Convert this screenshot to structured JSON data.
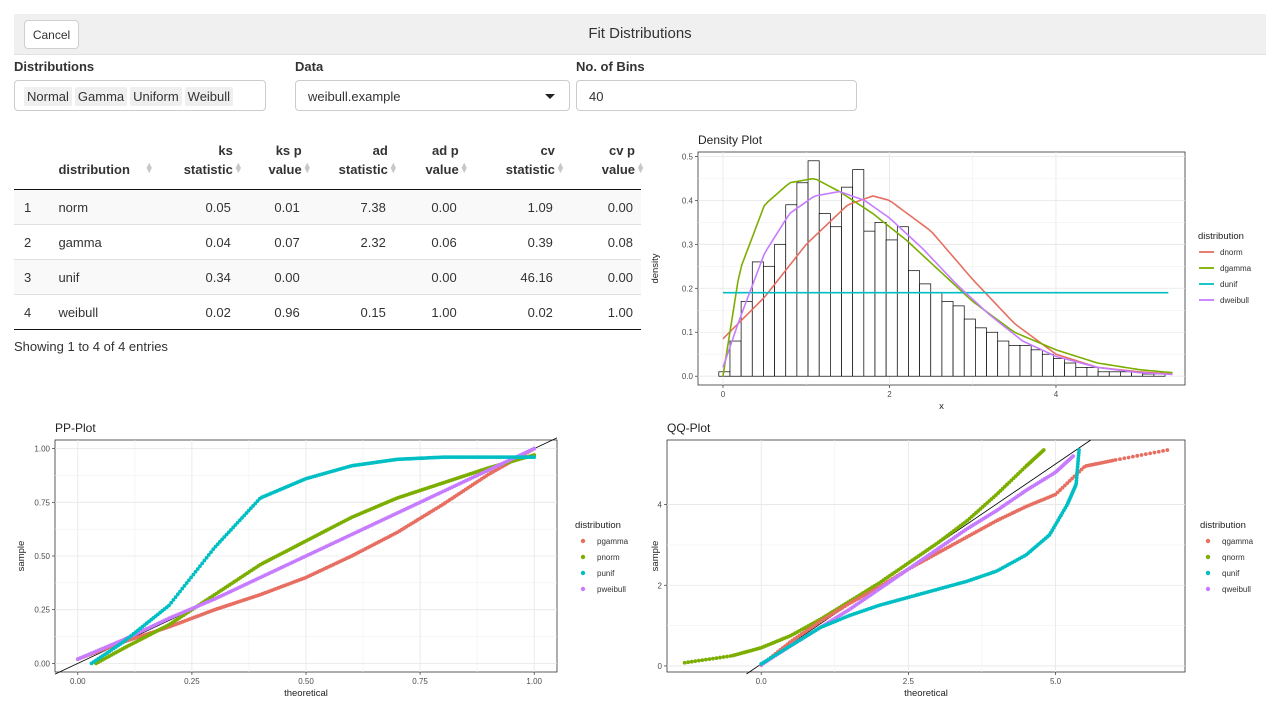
{
  "header": {
    "cancel_label": "Cancel",
    "title": "Fit Distributions"
  },
  "controls": {
    "distributions_label": "Distributions",
    "distributions": [
      "Normal",
      "Gamma",
      "Uniform",
      "Weibull"
    ],
    "data_label": "Data",
    "data_value": "weibull.example",
    "bins_label": "No. of Bins",
    "bins_value": "40"
  },
  "table": {
    "columns": [
      "",
      "distribution",
      "ks statistic",
      "ks p value",
      "ad statistic",
      "ad p value",
      "cv statistic",
      "cv p value"
    ],
    "rows": [
      [
        "1",
        "norm",
        "0.05",
        "0.01",
        "7.38",
        "0.00",
        "1.09",
        "0.00"
      ],
      [
        "2",
        "gamma",
        "0.04",
        "0.07",
        "2.32",
        "0.06",
        "0.39",
        "0.08"
      ],
      [
        "3",
        "unif",
        "0.34",
        "0.00",
        "",
        "0.00",
        "46.16",
        "0.00"
      ],
      [
        "4",
        "weibull",
        "0.02",
        "0.96",
        "0.15",
        "1.00",
        "0.02",
        "1.00"
      ]
    ],
    "info": "Showing 1 to 4 of 4 entries"
  },
  "colors": {
    "red": "#E76F62",
    "green": "#7CAE00",
    "cyan": "#00BFC4",
    "purple": "#C77CFF"
  },
  "chart_data": [
    {
      "type": "bar",
      "title": "Density Plot",
      "xlabel": "x",
      "ylabel": "density",
      "xlim": [
        -0.3,
        5.55
      ],
      "ylim": [
        -0.02,
        0.51
      ],
      "xticks": [
        "0",
        "2",
        "4"
      ],
      "yticks": [
        "0.0",
        "0.1",
        "0.2",
        "0.3",
        "0.4",
        "0.5"
      ],
      "legend_title": "distribution",
      "legend_position": "right",
      "bin_width": 0.134,
      "bin_start": -0.05,
      "histogram": [
        0.01,
        0.08,
        0.17,
        0.26,
        0.25,
        0.3,
        0.39,
        0.44,
        0.49,
        0.37,
        0.34,
        0.43,
        0.47,
        0.33,
        0.35,
        0.31,
        0.34,
        0.24,
        0.21,
        0.19,
        0.17,
        0.16,
        0.13,
        0.11,
        0.1,
        0.08,
        0.07,
        0.07,
        0.06,
        0.05,
        0.04,
        0.03,
        0.02,
        0.02,
        0.01,
        0.01,
        0.01,
        0.01,
        0.005,
        0.005
      ],
      "series": [
        {
          "name": "dnorm",
          "x": [
            0,
            0.5,
            1.0,
            1.5,
            1.8,
            2.0,
            2.5,
            3.0,
            3.5,
            4.0,
            4.5,
            5.0,
            5.4
          ],
          "values": [
            0.085,
            0.18,
            0.3,
            0.39,
            0.41,
            0.4,
            0.33,
            0.22,
            0.12,
            0.05,
            0.02,
            0.01,
            0.005
          ]
        },
        {
          "name": "dgamma",
          "x": [
            0,
            0.2,
            0.5,
            0.8,
            1.1,
            1.4,
            1.8,
            2.2,
            2.6,
            3.0,
            3.5,
            4.0,
            4.5,
            5.0,
            5.4
          ],
          "values": [
            0.0,
            0.24,
            0.39,
            0.44,
            0.45,
            0.42,
            0.37,
            0.31,
            0.24,
            0.17,
            0.1,
            0.06,
            0.03,
            0.015,
            0.008
          ]
        },
        {
          "name": "dunif",
          "x": [
            0.0,
            5.35
          ],
          "values": [
            0.19,
            0.19
          ]
        },
        {
          "name": "dweibull",
          "x": [
            0,
            0.2,
            0.5,
            0.8,
            1.1,
            1.4,
            1.7,
            2.0,
            2.4,
            2.8,
            3.2,
            3.6,
            4.0,
            4.5,
            5.0,
            5.4
          ],
          "values": [
            0.02,
            0.13,
            0.28,
            0.37,
            0.41,
            0.42,
            0.4,
            0.36,
            0.29,
            0.21,
            0.14,
            0.08,
            0.045,
            0.02,
            0.008,
            0.004
          ]
        }
      ]
    },
    {
      "type": "scatter",
      "title": "PP-Plot",
      "xlabel": "theoretical",
      "ylabel": "sample",
      "xlim": [
        -0.05,
        1.05
      ],
      "ylim": [
        -0.04,
        1.04
      ],
      "xticks": [
        "0.00",
        "0.25",
        "0.50",
        "0.75",
        "1.00"
      ],
      "yticks": [
        "0.00",
        "0.25",
        "0.50",
        "0.75",
        "1.00"
      ],
      "legend_title": "distribution",
      "legend_position": "right",
      "series": [
        {
          "name": "pgamma",
          "x": [
            0,
            0.1,
            0.2,
            0.3,
            0.4,
            0.5,
            0.6,
            0.7,
            0.8,
            0.9,
            1.0
          ],
          "values": [
            0.02,
            0.1,
            0.17,
            0.25,
            0.32,
            0.4,
            0.5,
            0.61,
            0.74,
            0.88,
            1.0
          ]
        },
        {
          "name": "pnorm",
          "x": [
            0.04,
            0.1,
            0.2,
            0.3,
            0.4,
            0.5,
            0.6,
            0.7,
            0.8,
            0.9,
            1.0
          ],
          "values": [
            0.0,
            0.07,
            0.18,
            0.32,
            0.46,
            0.57,
            0.68,
            0.77,
            0.84,
            0.91,
            0.97
          ]
        },
        {
          "name": "punif",
          "x": [
            0.03,
            0.1,
            0.2,
            0.3,
            0.4,
            0.5,
            0.6,
            0.7,
            0.8,
            0.9,
            1.0
          ],
          "values": [
            0.0,
            0.1,
            0.27,
            0.54,
            0.77,
            0.86,
            0.92,
            0.95,
            0.96,
            0.96,
            0.96
          ]
        },
        {
          "name": "pweibull",
          "x": [
            0,
            0.1,
            0.2,
            0.3,
            0.4,
            0.5,
            0.6,
            0.7,
            0.8,
            0.9,
            1.0
          ],
          "values": [
            0.02,
            0.11,
            0.21,
            0.3,
            0.4,
            0.5,
            0.6,
            0.7,
            0.8,
            0.9,
            1.0
          ]
        }
      ]
    },
    {
      "type": "scatter",
      "title": "QQ-Plot",
      "xlabel": "theoretical",
      "ylabel": "sample",
      "xlim": [
        -1.6,
        7.2
      ],
      "ylim": [
        -0.15,
        5.6
      ],
      "xticks": [
        "0.0",
        "2.5",
        "5.0"
      ],
      "yticks": [
        "0",
        "2",
        "4"
      ],
      "legend_title": "distribution",
      "legend_position": "right",
      "series": [
        {
          "name": "qgamma",
          "x": [
            0.0,
            0.5,
            1.0,
            1.5,
            2.0,
            2.5,
            3.0,
            3.5,
            4.0,
            4.5,
            5.0,
            5.5,
            6.0,
            6.9
          ],
          "values": [
            0.02,
            0.6,
            1.1,
            1.55,
            1.95,
            2.4,
            2.8,
            3.2,
            3.6,
            3.95,
            4.25,
            4.95,
            5.1,
            5.35
          ]
        },
        {
          "name": "qnorm",
          "x": [
            -1.3,
            -0.5,
            0.0,
            0.5,
            1.0,
            1.5,
            2.0,
            2.5,
            3.0,
            3.5,
            4.0,
            4.5,
            4.8
          ],
          "values": [
            0.08,
            0.25,
            0.45,
            0.75,
            1.15,
            1.6,
            2.05,
            2.55,
            3.05,
            3.6,
            4.25,
            4.95,
            5.35
          ]
        },
        {
          "name": "qunif",
          "x": [
            0.0,
            0.5,
            1.0,
            1.5,
            2.0,
            2.5,
            3.0,
            3.5,
            4.0,
            4.5,
            4.9,
            5.2,
            5.35,
            5.4
          ],
          "values": [
            0.05,
            0.5,
            0.95,
            1.25,
            1.5,
            1.7,
            1.9,
            2.1,
            2.35,
            2.75,
            3.25,
            4.0,
            4.5,
            5.35
          ]
        },
        {
          "name": "qweibull",
          "x": [
            0.0,
            0.5,
            1.0,
            1.5,
            2.0,
            2.5,
            3.0,
            3.5,
            4.0,
            4.5,
            5.0,
            5.3
          ],
          "values": [
            0.03,
            0.5,
            0.95,
            1.4,
            1.9,
            2.4,
            2.9,
            3.4,
            3.85,
            4.35,
            4.8,
            5.2
          ]
        }
      ]
    }
  ]
}
